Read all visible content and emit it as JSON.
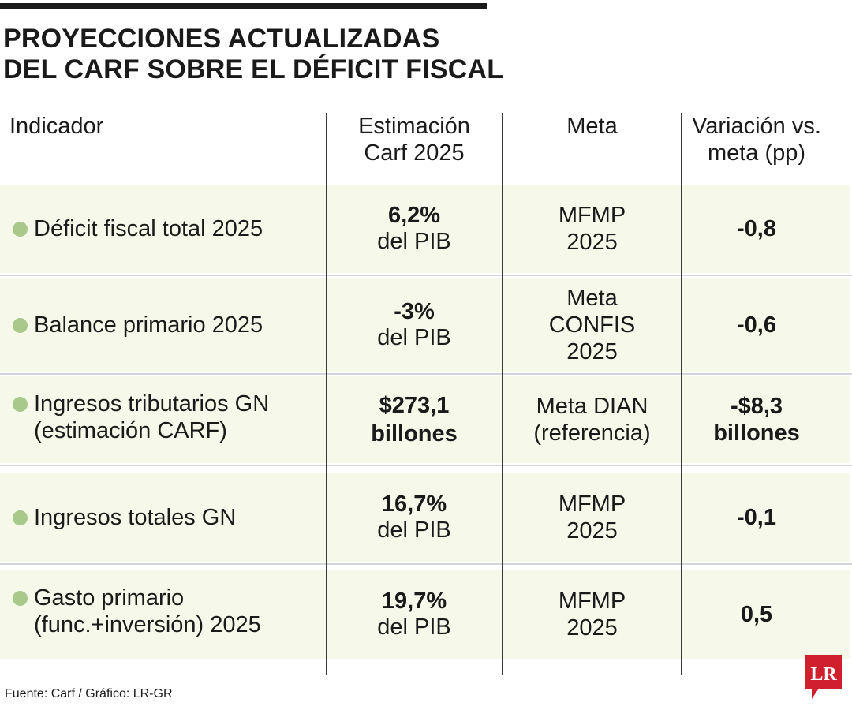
{
  "title": {
    "line1": "PROYECCIONES ACTUALIZADAS",
    "line2": "DEL CARF SOBRE EL DÉFICIT FISCAL"
  },
  "headers": {
    "indicador": "Indicador",
    "estimacion": "Estimación\nCarf 2025",
    "meta": "Meta",
    "variacion": "Variación vs.\nmeta (pp)"
  },
  "rows": [
    {
      "indicador": "Déficit fiscal total 2025",
      "estimacion": "6,2%",
      "estimacion_unit": "del PIB",
      "meta": "MFMP\n2025",
      "variacion": "-0,8"
    },
    {
      "indicador": "Balance primario 2025",
      "estimacion": "-3%",
      "estimacion_unit": "del PIB",
      "meta": "Meta\nCONFIS\n2025",
      "variacion": "-0,6"
    },
    {
      "indicador": "Ingresos tributarios GN\n(estimación CARF)",
      "estimacion": "$273,1\nbillones",
      "estimacion_unit": "",
      "meta": "Meta DIAN\n(referencia)",
      "variacion": "-$8,3\nbillones"
    },
    {
      "indicador": "Ingresos totales GN",
      "estimacion": "16,7%",
      "estimacion_unit": "del PIB",
      "meta": "MFMP\n2025",
      "variacion": "-0,1"
    },
    {
      "indicador": "Gasto primario\n(func.+inversión) 2025",
      "estimacion": "19,7%",
      "estimacion_unit": "del PIB",
      "meta": "MFMP\n2025",
      "variacion": "0,5"
    }
  ],
  "source": "Fuente: Carf / Gráfico: LR-GR",
  "logo": {
    "text": "LR",
    "color": "#d0202e"
  },
  "colors": {
    "row_bg": "#f6f8ea",
    "dot": "#a8c98a",
    "separator": "#d3d6d8"
  }
}
